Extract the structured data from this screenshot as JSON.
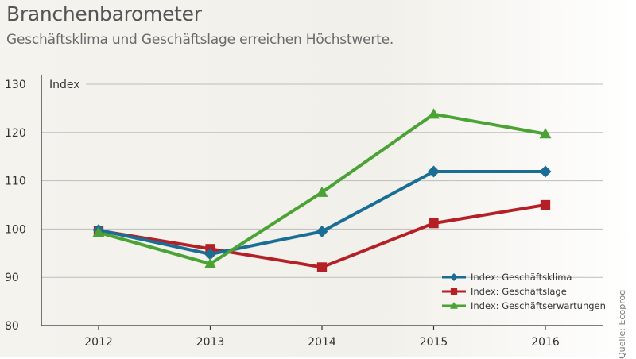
{
  "header": {
    "title": "Branchenbarometer",
    "subtitle": "Geschäftsklima und Geschäftslage erreichen Höchstwerte."
  },
  "source": "Quelle: Ecoprog",
  "colors": {
    "geschaeftsklima": "#1a6e96",
    "geschaeftslage": "#b42025",
    "geschaeftserwartungen": "#4aa334",
    "grid": "#bdbdbd"
  },
  "chart_data": {
    "type": "line",
    "title": "Branchenbarometer",
    "subtitle": "Geschäftsklima und Geschäftslage erreichen Höchstwerte.",
    "xlabel": "",
    "ylabel": "Index",
    "categories": [
      "2012",
      "2013",
      "2014",
      "2015",
      "2016"
    ],
    "ylim": [
      80,
      130
    ],
    "yticks": [
      80,
      90,
      100,
      110,
      120,
      130
    ],
    "grid": true,
    "legend_position": "bottom-right",
    "series": [
      {
        "name": "Index: Geschäftsklima",
        "marker": "diamond",
        "color": "#1a6e96",
        "values": [
          99.8,
          94.8,
          99.5,
          111.9,
          111.9
        ]
      },
      {
        "name": "Index: Geschäftslage",
        "marker": "square",
        "color": "#b42025",
        "values": [
          99.7,
          95.9,
          92.1,
          101.2,
          105.0
        ]
      },
      {
        "name": "Index: Geschäftserwartungen",
        "marker": "triangle",
        "color": "#4aa334",
        "values": [
          99.3,
          92.8,
          107.6,
          123.8,
          119.7
        ]
      }
    ]
  }
}
